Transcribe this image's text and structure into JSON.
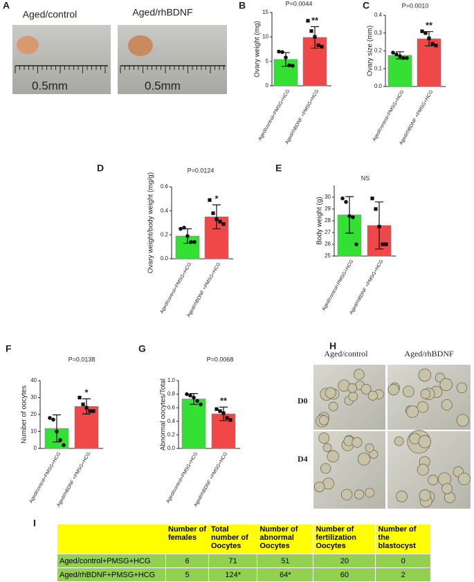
{
  "photo_a": {
    "panel": "A",
    "labels": [
      "Aged/control",
      "Aged/rhBDNF"
    ],
    "scale": [
      "0.5mm",
      "0.5mm"
    ]
  },
  "chart_data": [
    {
      "type": "bar",
      "panel": "B",
      "title": "P=0.0044",
      "annotation": "**",
      "ylabel": "Ovary weight (mg)",
      "categories": [
        "Aged/control+PMSG+HCG",
        "Aged/rhBDNF +PMSG+HCG"
      ],
      "colors": [
        "#33e033",
        "#f04848"
      ],
      "values": [
        5.4,
        9.9
      ],
      "errors": [
        1.4,
        2.2
      ],
      "points": [
        [
          7.0,
          6.9,
          5.8,
          4.2,
          4.1
        ],
        [
          13.3,
          11.2,
          10.0,
          8.3,
          8.0
        ]
      ],
      "ylim": [
        0,
        15
      ],
      "yticks": [
        0,
        5,
        10,
        15
      ]
    },
    {
      "type": "bar",
      "panel": "C",
      "title": "P=0.0010",
      "annotation": "**",
      "ylabel": "Ovary size (mm)",
      "categories": [
        "Aged/control+PMSG+HCG",
        "Aged/rhBDNF +PMSG+HCG"
      ],
      "colors": [
        "#33e033",
        "#f04848"
      ],
      "values": [
        0.175,
        0.268
      ],
      "errors": [
        0.02,
        0.04
      ],
      "points": [
        [
          0.19,
          0.18,
          0.17,
          0.16,
          0.16
        ],
        [
          0.31,
          0.3,
          0.27,
          0.24,
          0.23
        ]
      ],
      "ylim": [
        0,
        0.4
      ],
      "yticks": [
        {
          "value": 0,
          "label": "0.0"
        },
        0.1,
        0.2,
        0.3,
        0.4
      ]
    },
    {
      "type": "bar",
      "panel": "D",
      "title": "P=0.0124",
      "annotation": "*",
      "ylabel": "Ovary weight/body weight (mg/g)",
      "categories": [
        "Aged/control+PMSG+HCG",
        "Aged/rhBDNF +PMSG+HCG"
      ],
      "colors": [
        "#33e033",
        "#f04848"
      ],
      "values": [
        0.19,
        0.35
      ],
      "errors": [
        0.06,
        0.1
      ],
      "points": [
        [
          0.25,
          0.26,
          0.19,
          0.14,
          0.14
        ],
        [
          0.49,
          0.38,
          0.33,
          0.31,
          0.29
        ]
      ],
      "ylim": [
        0,
        0.6
      ],
      "yticks": [
        {
          "value": 0,
          "label": "0.0"
        },
        0.2,
        0.4,
        0.6
      ]
    },
    {
      "type": "bar",
      "panel": "E",
      "title": "NS",
      "ylabel": "Body weight (g)",
      "categories": [
        "Aged/control+PMSG+HCG",
        "Aged/rhBDNF +PMSG+HCG"
      ],
      "colors": [
        "#33e033",
        "#f04848"
      ],
      "values": [
        28.5,
        27.6
      ],
      "errors": [
        1.55,
        2.0
      ],
      "points": [
        [
          29.9,
          29.6,
          28.4,
          28.3,
          26.0
        ],
        [
          29.9,
          29.0,
          27.5,
          26.0,
          26.0
        ]
      ],
      "ylim": [
        25,
        31
      ],
      "yticks": [
        25,
        26,
        27,
        28,
        29,
        30
      ]
    },
    {
      "type": "bar",
      "panel": "F",
      "title": "P=0.0138",
      "annotation": "*",
      "ylabel": "Number of oocytes",
      "categories": [
        "Aged/control+PMSG+HCG",
        "Aged/rhBDNF +PMSG+HCG"
      ],
      "colors": [
        "#33e033",
        "#f04848"
      ],
      "values": [
        11.8,
        24.8
      ],
      "errors": [
        8,
        4.5
      ],
      "points": [
        [
          18,
          17,
          10,
          5,
          2
        ],
        [
          30,
          26,
          24,
          22,
          22
        ]
      ],
      "ylim": [
        0,
        40
      ],
      "yticks": [
        0,
        10,
        20,
        30,
        40
      ]
    },
    {
      "type": "bar",
      "panel": "G",
      "title": "P=0.0068",
      "annotation": "**",
      "ylabel": "Abnormal oocytes/Total",
      "categories": [
        "Aged/control+PMSG+HCG",
        "Aged/rhBDNF +PMSG+HCG"
      ],
      "colors": [
        "#33e033",
        "#f04848"
      ],
      "values": [
        0.73,
        0.51
      ],
      "errors": [
        0.08,
        0.1
      ],
      "points": [
        [
          0.8,
          0.78,
          0.75,
          0.7,
          0.65
        ],
        [
          0.58,
          0.55,
          0.52,
          0.45,
          0.42
        ]
      ],
      "ylim": [
        0,
        1
      ],
      "yticks": [
        {
          "value": 0,
          "label": "0.0"
        },
        0.2,
        0.4,
        0.6,
        0.8,
        {
          "value": 1,
          "label": "1.0"
        }
      ]
    }
  ],
  "photo_h": {
    "panel": "H",
    "columns": [
      "Aged/control",
      "Aged/rhBDNF"
    ],
    "rows": [
      "D0",
      "D4"
    ]
  },
  "table": {
    "panel": "I",
    "header": [
      "Number of females",
      "Total number of Oocytes",
      "Number of abnormal Oocytes",
      "Number of fertilization Oocytes",
      "Number of the blastocyst"
    ],
    "rows": [
      [
        "Aged/control+PMSG+HCG",
        "6",
        "71",
        "51",
        "20",
        "0"
      ],
      [
        "Aged/rhBDNF+PMSG+HCG",
        "5",
        "124*",
        "64*",
        "60",
        "2"
      ]
    ]
  }
}
